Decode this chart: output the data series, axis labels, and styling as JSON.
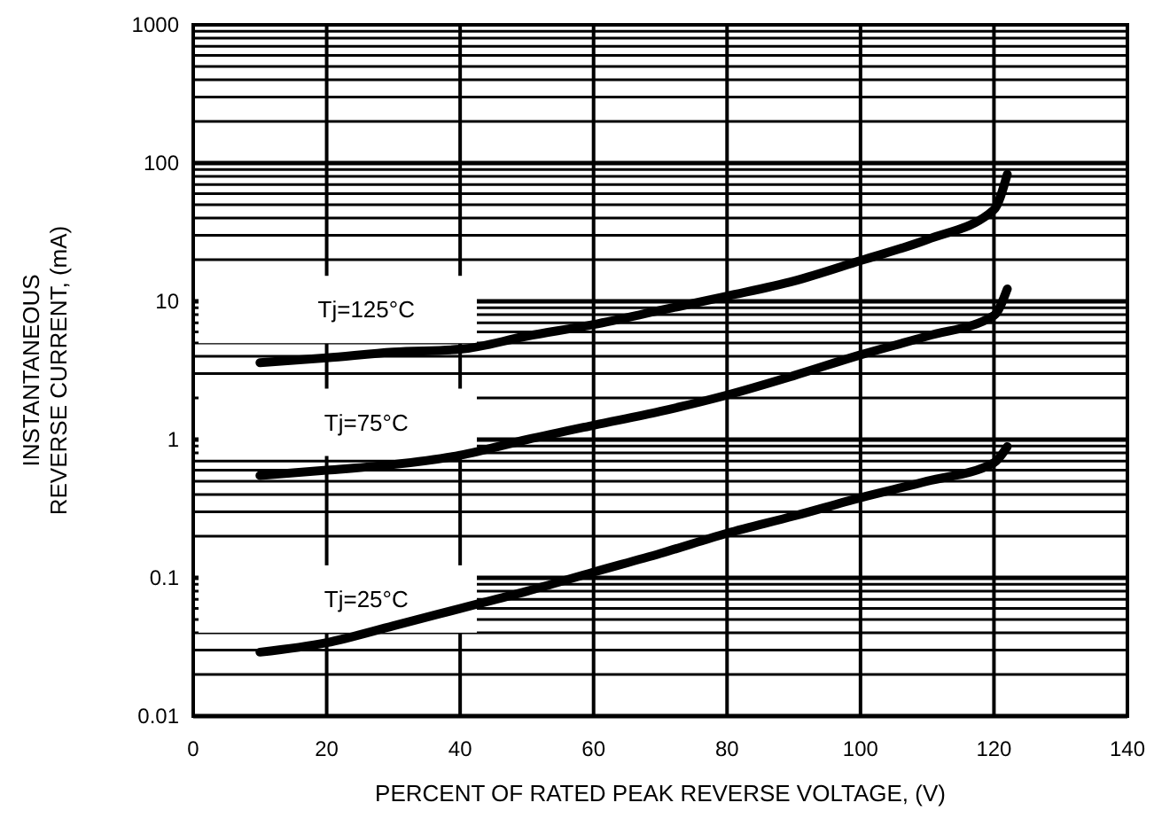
{
  "chart_data": {
    "type": "line",
    "xlabel": "PERCENT OF RATED PEAK REVERSE VOLTAGE, (V)",
    "ylabel": "INSTANTANEOUS REVERSE CURRENT, (mA)",
    "log": "y",
    "grid": true,
    "xlim": [
      0,
      140
    ],
    "xticks": [
      0,
      20,
      40,
      60,
      80,
      100,
      120,
      140
    ],
    "ylim": [
      0.01,
      1000
    ],
    "yticks": [
      0.01,
      0.1,
      1,
      10,
      100,
      1000
    ],
    "x": [
      10,
      20,
      30,
      40,
      50,
      60,
      70,
      80,
      90,
      100,
      110,
      120,
      122
    ],
    "series": [
      {
        "name": "Tj=125°C",
        "color": "#000000",
        "values": [
          3.6,
          3.9,
          4.3,
          4.5,
          5.6,
          6.8,
          8.6,
          10.9,
          14,
          19.7,
          28,
          46,
          83
        ]
      },
      {
        "name": "Tj=75°C",
        "color": "#000000",
        "values": [
          0.55,
          0.6,
          0.66,
          0.77,
          1.0,
          1.27,
          1.6,
          2.1,
          2.9,
          4.1,
          5.6,
          7.9,
          12.3
        ]
      },
      {
        "name": "Tj=25°C",
        "color": "#000000",
        "values": [
          0.029,
          0.034,
          0.045,
          0.06,
          0.08,
          0.11,
          0.15,
          0.21,
          0.28,
          0.38,
          0.5,
          0.68,
          0.89
        ]
      }
    ]
  }
}
